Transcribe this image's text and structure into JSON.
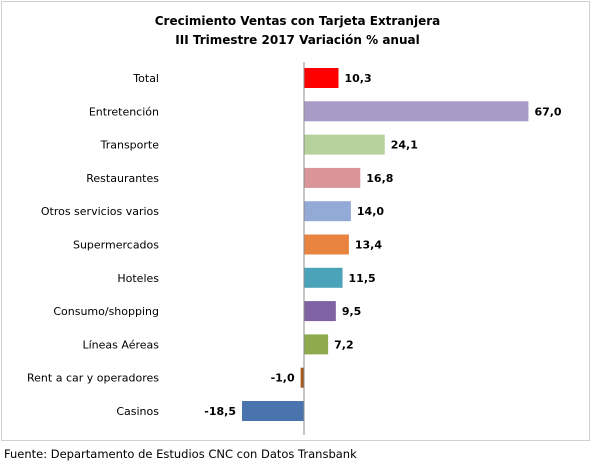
{
  "chart_data": {
    "type": "bar",
    "orientation": "horizontal",
    "title": "Crecimiento Ventas con Tarjeta Extranjera",
    "subtitle": "III Trimestre 2017 Variación % anual",
    "categories": [
      "Total",
      "Entretención",
      "Transporte",
      "Restaurantes",
      "Otros servicios varios",
      "Supermercados",
      "Hoteles",
      "Consumo/shopping",
      "Líneas Aéreas",
      "Rent a car y operadores",
      "Casinos"
    ],
    "values": [
      10.3,
      67.0,
      24.1,
      16.8,
      14.0,
      13.4,
      11.5,
      9.5,
      7.2,
      -1.0,
      -18.5
    ],
    "value_labels": [
      "10,3",
      "67,0",
      "24,1",
      "16,8",
      "14,0",
      "13,4",
      "11,5",
      "9,5",
      "7,2",
      "-1,0",
      "-18,5"
    ],
    "colors": [
      "#ff0000",
      "#a99bc7",
      "#b6d19b",
      "#d99597",
      "#94aad6",
      "#e8843f",
      "#4aa3b8",
      "#7e62a3",
      "#8eaa4d",
      "#a2581f",
      "#4a74ad"
    ],
    "xlabel": "",
    "ylabel": "",
    "grid": false,
    "legend": "none"
  },
  "footer": "Fuente: Departamento de Estudios CNC con Datos Transbank"
}
